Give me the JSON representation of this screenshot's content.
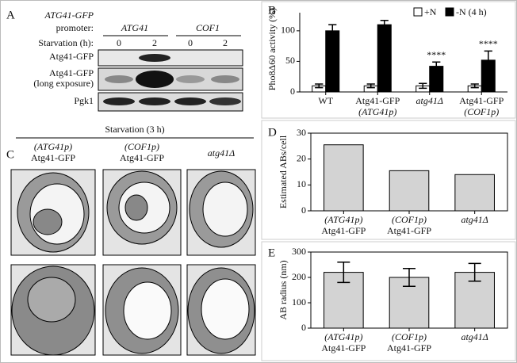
{
  "panel_a": {
    "letter": "A",
    "construct": "ATG41-GFP",
    "promoter_label": "promoter:",
    "promoters": [
      "ATG41",
      "COF1"
    ],
    "starvation_label": "Starvation (h):",
    "timepoints": [
      "0",
      "2",
      "0",
      "2"
    ],
    "rows": [
      "Atg41-GFP",
      "Atg41-GFP",
      "(long exposure)",
      "Pgk1"
    ]
  },
  "panel_c": {
    "letter": "C",
    "condition": "Starvation (3 h)",
    "columns": [
      [
        "(ATG41p)",
        "Atg41-GFP"
      ],
      [
        "(COF1p)",
        "Atg41-GFP"
      ],
      [
        "atg41Δ"
      ]
    ]
  },
  "chart_data": [
    {
      "type": "bar",
      "letter": "B",
      "ylabel": "Pho8Δ60 activity (%)",
      "categories": [
        [
          "WT"
        ],
        [
          "Atg41-GFP",
          "(ATG41p)"
        ],
        [
          "atg41Δ"
        ],
        [
          "Atg41-GFP",
          "(COF1p)"
        ]
      ],
      "series": [
        {
          "name": "+N",
          "color": "#ffffff",
          "values": [
            10,
            10,
            10,
            10
          ],
          "errors": [
            3,
            3,
            4,
            3
          ]
        },
        {
          "name": "-N (4 h)",
          "color": "#000000",
          "values": [
            100,
            110,
            42,
            52
          ],
          "errors": [
            10,
            7,
            7,
            15
          ]
        }
      ],
      "annotations": [
        "****",
        "****"
      ],
      "ylim": [
        0,
        140
      ],
      "yticks": [
        0,
        50,
        100
      ]
    },
    {
      "type": "bar",
      "letter": "D",
      "ylabel": "Estimated ABs/cell",
      "categories": [
        [
          "(ATG41p)",
          "Atg41-GFP"
        ],
        [
          "(COF1p)",
          "Atg41-GFP"
        ],
        [
          "atg41Δ"
        ]
      ],
      "values": [
        25.5,
        15.5,
        14
      ],
      "color": "#d3d3d3",
      "ylim": [
        0,
        30
      ],
      "yticks": [
        0,
        10,
        20,
        30
      ]
    },
    {
      "type": "bar",
      "letter": "E",
      "ylabel": "AB radius (nm)",
      "categories": [
        [
          "(ATG41p)",
          "Atg41-GFP"
        ],
        [
          "(COF1p)",
          "Atg41-GFP"
        ],
        [
          "atg41Δ"
        ]
      ],
      "values": [
        220,
        200,
        220
      ],
      "errors": [
        40,
        35,
        35
      ],
      "color": "#d3d3d3",
      "ylim": [
        0,
        300
      ],
      "yticks": [
        0,
        100,
        200,
        300
      ]
    }
  ]
}
